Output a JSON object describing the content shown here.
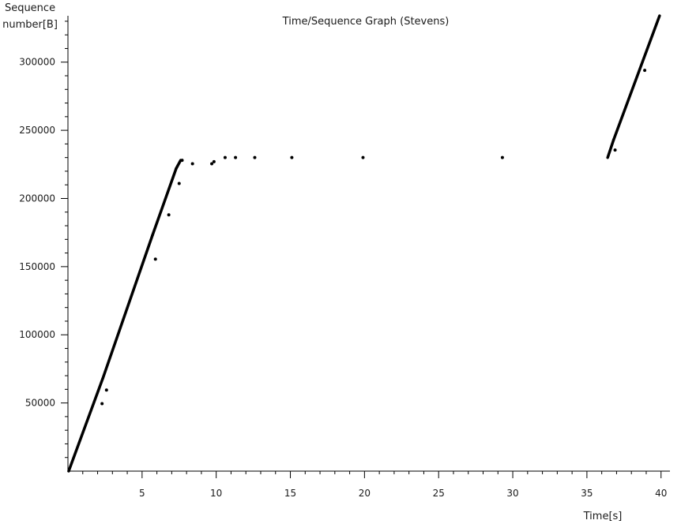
{
  "chart_data": {
    "type": "scatter",
    "title": "Time/Sequence Graph (Stevens)",
    "xlabel": "Time[s]",
    "ylabel": [
      "Sequence",
      "number[B]"
    ],
    "xlim": [
      0,
      40.6
    ],
    "ylim": [
      0,
      334000
    ],
    "x_ticks": [
      5,
      10,
      15,
      20,
      25,
      30,
      35,
      40
    ],
    "x_tick_labels": [
      "5",
      "10",
      "15",
      "20",
      "25",
      "30",
      "35",
      "40"
    ],
    "x_minor_step": 1,
    "y_ticks": [
      50000,
      100000,
      150000,
      200000,
      250000,
      300000
    ],
    "y_tick_labels": [
      "50000",
      "100000",
      "150000",
      "200000",
      "250000",
      "300000"
    ],
    "y_minor_step": 10000,
    "grid": false,
    "marker_color": "#000000",
    "series": [
      {
        "role": "dense-segments",
        "segments": [
          {
            "x": [
              0.05,
              2.35
            ],
            "y": [
              0,
              68000
            ]
          },
          {
            "x": [
              2.35,
              5.7
            ],
            "y": [
              68000,
              173000
            ]
          },
          {
            "x": [
              5.7,
              7.3
            ],
            "y": [
              173000,
              222000
            ]
          },
          {
            "x": [
              7.3,
              7.6
            ],
            "y": [
              222000,
              228000
            ]
          },
          {
            "x": [
              36.4,
              36.8
            ],
            "y": [
              230000,
              243000
            ]
          },
          {
            "x": [
              36.8,
              39.9
            ],
            "y": [
              243000,
              334000
            ]
          }
        ]
      },
      {
        "role": "isolated-points",
        "x": [
          2.3,
          2.6,
          5.9,
          6.8,
          7.5,
          7.7,
          8.4,
          9.7,
          9.85,
          10.6,
          11.3,
          12.6,
          15.1,
          19.9,
          29.3,
          36.9,
          38.9
        ],
        "y": [
          49500,
          59500,
          155500,
          188000,
          211000,
          228000,
          225500,
          225500,
          227000,
          230000,
          230000,
          230000,
          230000,
          230000,
          230000,
          235500,
          294000
        ]
      }
    ]
  }
}
